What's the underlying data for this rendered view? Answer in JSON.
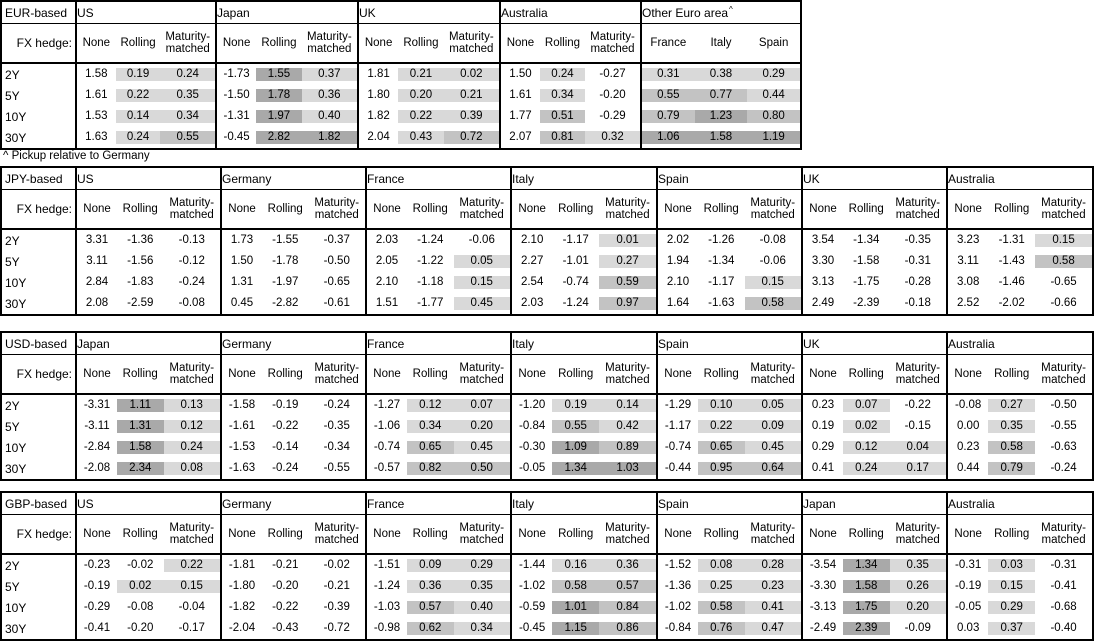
{
  "colors": {
    "shade_light": "#d9d9d9",
    "shade_medium": "#c3c3c3",
    "shade_dark": "#a9a9a9",
    "border": "#000000",
    "text": "#000000",
    "background": "#ffffff"
  },
  "footnote": {
    "text": "^ Pickup relative to Germany",
    "marker": "^"
  },
  "hedge_row_label": "FX hedge:",
  "hedge_columns": [
    "None",
    "Rolling",
    "Maturity-matched"
  ],
  "tenors": [
    "2Y",
    "5Y",
    "10Y",
    "30Y"
  ],
  "tables": [
    {
      "base_label": "EUR-based",
      "groups": [
        {
          "country": "US",
          "type": "hedge",
          "rows": [
            [
              "1.58",
              "0.19",
              "0.24"
            ],
            [
              "1.61",
              "0.22",
              "0.35"
            ],
            [
              "1.53",
              "0.14",
              "0.34"
            ],
            [
              "1.63",
              "0.24",
              "0.55"
            ]
          ]
        },
        {
          "country": "Japan",
          "type": "hedge",
          "rows": [
            [
              "-1.73",
              "1.55",
              "0.37"
            ],
            [
              "-1.50",
              "1.78",
              "0.36"
            ],
            [
              "-1.31",
              "1.97",
              "0.40"
            ],
            [
              "-0.45",
              "2.82",
              "1.82"
            ]
          ]
        },
        {
          "country": "UK",
          "type": "hedge",
          "rows": [
            [
              "1.81",
              "0.21",
              "0.02"
            ],
            [
              "1.80",
              "0.20",
              "0.21"
            ],
            [
              "1.82",
              "0.22",
              "0.39"
            ],
            [
              "2.04",
              "0.43",
              "0.72"
            ]
          ]
        },
        {
          "country": "Australia",
          "type": "hedge",
          "rows": [
            [
              "1.50",
              "0.24",
              "-0.27"
            ],
            [
              "1.61",
              "0.34",
              "-0.20"
            ],
            [
              "1.77",
              "0.51",
              "-0.29"
            ],
            [
              "2.07",
              "0.81",
              "0.32"
            ]
          ]
        },
        {
          "country": "Other Euro area",
          "footnote_marker": "^",
          "type": "countries",
          "columns": [
            "France",
            "Italy",
            "Spain"
          ],
          "rows": [
            [
              "0.31",
              "0.38",
              "0.29"
            ],
            [
              "0.55",
              "0.77",
              "0.44"
            ],
            [
              "0.79",
              "1.23",
              "0.80"
            ],
            [
              "1.06",
              "1.58",
              "1.19"
            ]
          ]
        }
      ]
    },
    {
      "base_label": "JPY-based",
      "groups": [
        {
          "country": "US",
          "type": "hedge",
          "rows": [
            [
              "3.31",
              "-1.36",
              "-0.13"
            ],
            [
              "3.11",
              "-1.56",
              "-0.12"
            ],
            [
              "2.84",
              "-1.83",
              "-0.24"
            ],
            [
              "2.08",
              "-2.59",
              "-0.08"
            ]
          ]
        },
        {
          "country": "Germany",
          "type": "hedge",
          "rows": [
            [
              "1.73",
              "-1.55",
              "-0.37"
            ],
            [
              "1.50",
              "-1.78",
              "-0.50"
            ],
            [
              "1.31",
              "-1.97",
              "-0.65"
            ],
            [
              "0.45",
              "-2.82",
              "-0.61"
            ]
          ]
        },
        {
          "country": "France",
          "type": "hedge",
          "rows": [
            [
              "2.03",
              "-1.24",
              "-0.06"
            ],
            [
              "2.05",
              "-1.22",
              "0.05"
            ],
            [
              "2.10",
              "-1.18",
              "0.15"
            ],
            [
              "1.51",
              "-1.77",
              "0.45"
            ]
          ]
        },
        {
          "country": "Italy",
          "type": "hedge",
          "rows": [
            [
              "2.10",
              "-1.17",
              "0.01"
            ],
            [
              "2.27",
              "-1.01",
              "0.27"
            ],
            [
              "2.54",
              "-0.74",
              "0.59"
            ],
            [
              "2.03",
              "-1.24",
              "0.97"
            ]
          ]
        },
        {
          "country": "Spain",
          "type": "hedge",
          "rows": [
            [
              "2.02",
              "-1.26",
              "-0.08"
            ],
            [
              "1.94",
              "-1.34",
              "-0.06"
            ],
            [
              "2.10",
              "-1.17",
              "0.15"
            ],
            [
              "1.64",
              "-1.63",
              "0.58"
            ]
          ]
        },
        {
          "country": "UK",
          "type": "hedge",
          "rows": [
            [
              "3.54",
              "-1.34",
              "-0.35"
            ],
            [
              "3.30",
              "-1.58",
              "-0.31"
            ],
            [
              "3.13",
              "-1.75",
              "-0.28"
            ],
            [
              "2.49",
              "-2.39",
              "-0.18"
            ]
          ]
        },
        {
          "country": "Australia",
          "type": "hedge",
          "rows": [
            [
              "3.23",
              "-1.31",
              "0.15"
            ],
            [
              "3.11",
              "-1.43",
              "0.58"
            ],
            [
              "3.08",
              "-1.46",
              "-0.65"
            ],
            [
              "2.52",
              "-2.02",
              "-0.66"
            ]
          ]
        }
      ]
    },
    {
      "base_label": "USD-based",
      "groups": [
        {
          "country": "Japan",
          "type": "hedge",
          "rows": [
            [
              "-3.31",
              "1.11",
              "0.13"
            ],
            [
              "-3.11",
              "1.31",
              "0.12"
            ],
            [
              "-2.84",
              "1.58",
              "0.24"
            ],
            [
              "-2.08",
              "2.34",
              "0.08"
            ]
          ]
        },
        {
          "country": "Germany",
          "type": "hedge",
          "rows": [
            [
              "-1.58",
              "-0.19",
              "-0.24"
            ],
            [
              "-1.61",
              "-0.22",
              "-0.35"
            ],
            [
              "-1.53",
              "-0.14",
              "-0.34"
            ],
            [
              "-1.63",
              "-0.24",
              "-0.55"
            ]
          ]
        },
        {
          "country": "France",
          "type": "hedge",
          "rows": [
            [
              "-1.27",
              "0.12",
              "0.07"
            ],
            [
              "-1.06",
              "0.34",
              "0.20"
            ],
            [
              "-0.74",
              "0.65",
              "0.45"
            ],
            [
              "-0.57",
              "0.82",
              "0.50"
            ]
          ]
        },
        {
          "country": "Italy",
          "type": "hedge",
          "rows": [
            [
              "-1.20",
              "0.19",
              "0.14"
            ],
            [
              "-0.84",
              "0.55",
              "0.42"
            ],
            [
              "-0.30",
              "1.09",
              "0.89"
            ],
            [
              "-0.05",
              "1.34",
              "1.03"
            ]
          ]
        },
        {
          "country": "Spain",
          "type": "hedge",
          "rows": [
            [
              "-1.29",
              "0.10",
              "0.05"
            ],
            [
              "-1.17",
              "0.22",
              "0.09"
            ],
            [
              "-0.74",
              "0.65",
              "0.45"
            ],
            [
              "-0.44",
              "0.95",
              "0.64"
            ]
          ]
        },
        {
          "country": "UK",
          "type": "hedge",
          "rows": [
            [
              "0.23",
              "0.07",
              "-0.22"
            ],
            [
              "0.19",
              "0.02",
              "-0.15"
            ],
            [
              "0.29",
              "0.12",
              "0.04"
            ],
            [
              "0.41",
              "0.24",
              "0.17"
            ]
          ]
        },
        {
          "country": "Australia",
          "type": "hedge",
          "rows": [
            [
              "-0.08",
              "0.27",
              "-0.50"
            ],
            [
              "0.00",
              "0.35",
              "-0.55"
            ],
            [
              "0.23",
              "0.58",
              "-0.63"
            ],
            [
              "0.44",
              "0.79",
              "-0.24"
            ]
          ]
        }
      ]
    },
    {
      "base_label": "GBP-based",
      "groups": [
        {
          "country": "US",
          "type": "hedge",
          "rows": [
            [
              "-0.23",
              "-0.02",
              "0.22"
            ],
            [
              "-0.19",
              "0.02",
              "0.15"
            ],
            [
              "-0.29",
              "-0.08",
              "-0.04"
            ],
            [
              "-0.41",
              "-0.20",
              "-0.17"
            ]
          ]
        },
        {
          "country": "Germany",
          "type": "hedge",
          "rows": [
            [
              "-1.81",
              "-0.21",
              "-0.02"
            ],
            [
              "-1.80",
              "-0.20",
              "-0.21"
            ],
            [
              "-1.82",
              "-0.22",
              "-0.39"
            ],
            [
              "-2.04",
              "-0.43",
              "-0.72"
            ]
          ]
        },
        {
          "country": "France",
          "type": "hedge",
          "rows": [
            [
              "-1.51",
              "0.09",
              "0.29"
            ],
            [
              "-1.24",
              "0.36",
              "0.35"
            ],
            [
              "-1.03",
              "0.57",
              "0.40"
            ],
            [
              "-0.98",
              "0.62",
              "0.34"
            ]
          ]
        },
        {
          "country": "Italy",
          "type": "hedge",
          "rows": [
            [
              "-1.44",
              "0.16",
              "0.36"
            ],
            [
              "-1.02",
              "0.58",
              "0.57"
            ],
            [
              "-0.59",
              "1.01",
              "0.84"
            ],
            [
              "-0.45",
              "1.15",
              "0.86"
            ]
          ]
        },
        {
          "country": "Spain",
          "type": "hedge",
          "rows": [
            [
              "-1.52",
              "0.08",
              "0.28"
            ],
            [
              "-1.36",
              "0.25",
              "0.23"
            ],
            [
              "-1.02",
              "0.58",
              "0.41"
            ],
            [
              "-0.84",
              "0.76",
              "0.47"
            ]
          ]
        },
        {
          "country": "Japan",
          "type": "hedge",
          "rows": [
            [
              "-3.54",
              "1.34",
              "0.35"
            ],
            [
              "-3.30",
              "1.58",
              "0.26"
            ],
            [
              "-3.13",
              "1.75",
              "0.20"
            ],
            [
              "-2.49",
              "2.39",
              "-0.09"
            ]
          ]
        },
        {
          "country": "Australia",
          "type": "hedge",
          "rows": [
            [
              "-0.31",
              "0.03",
              "-0.31"
            ],
            [
              "-0.19",
              "0.15",
              "-0.41"
            ],
            [
              "-0.05",
              "0.29",
              "-0.68"
            ],
            [
              "0.03",
              "0.37",
              "-0.40"
            ]
          ]
        }
      ]
    }
  ]
}
